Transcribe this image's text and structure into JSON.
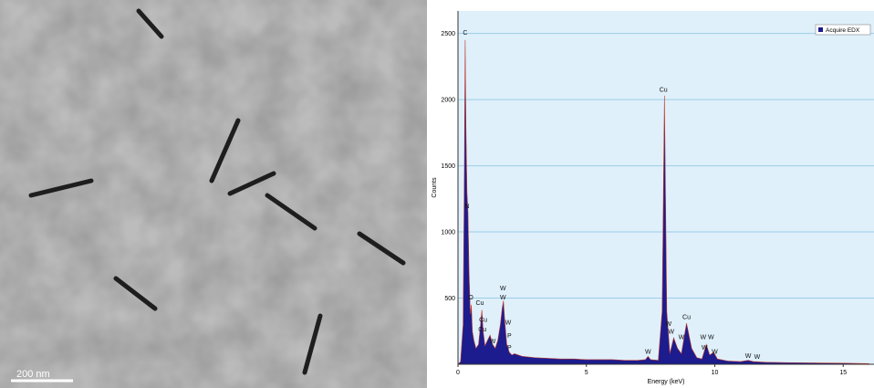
{
  "image": {
    "scale_label": "200 nm"
  },
  "chart_data": {
    "type": "area",
    "xlabel": "Energy (keV)",
    "ylabel": "Counts",
    "x": [
      0,
      0.1,
      0.2,
      0.25,
      0.28,
      0.31,
      0.35,
      0.39,
      0.43,
      0.48,
      0.52,
      0.56,
      0.62,
      0.7,
      0.8,
      0.88,
      0.93,
      0.98,
      1.05,
      1.15,
      1.25,
      1.35,
      1.45,
      1.55,
      1.65,
      1.72,
      1.77,
      1.82,
      1.9,
      2.0,
      2.1,
      2.2,
      2.5,
      3,
      3.5,
      4,
      4.5,
      5,
      5.5,
      6,
      6.5,
      7,
      7.3,
      7.4,
      7.5,
      7.8,
      7.95,
      8.04,
      8.13,
      8.25,
      8.4,
      8.55,
      8.7,
      8.9,
      9.1,
      9.3,
      9.5,
      9.67,
      9.8,
      9.96,
      10.1,
      10.5,
      11,
      11.3,
      11.5,
      12,
      13,
      14,
      15,
      16
    ],
    "series": [
      {
        "name": "Acquire EDX",
        "color": "#1c1c8e",
        "values": [
          0,
          20,
          300,
          1500,
          2450,
          1800,
          1300,
          1150,
          700,
          380,
          450,
          250,
          180,
          120,
          150,
          300,
          410,
          250,
          140,
          180,
          220,
          150,
          120,
          180,
          300,
          420,
          480,
          330,
          150,
          90,
          70,
          80,
          60,
          50,
          45,
          40,
          40,
          35,
          35,
          35,
          30,
          30,
          35,
          60,
          35,
          30,
          400,
          2030,
          400,
          80,
          200,
          120,
          80,
          310,
          120,
          50,
          40,
          150,
          70,
          90,
          40,
          25,
          20,
          30,
          20,
          15,
          12,
          10,
          8,
          5
        ]
      }
    ],
    "annotations": [
      {
        "text": "C",
        "x": 0.28,
        "y": 2490
      },
      {
        "text": "N",
        "x": 0.35,
        "y": 1180
      },
      {
        "text": "O",
        "x": 0.5,
        "y": 490
      },
      {
        "text": "Cu",
        "x": 0.85,
        "y": 450
      },
      {
        "text": "Cu",
        "x": 0.98,
        "y": 320
      },
      {
        "text": "Cu",
        "x": 0.95,
        "y": 250
      },
      {
        "text": "W",
        "x": 1.35,
        "y": 160
      },
      {
        "text": "W",
        "x": 1.75,
        "y": 560
      },
      {
        "text": "W",
        "x": 1.75,
        "y": 490
      },
      {
        "text": "W",
        "x": 1.95,
        "y": 300
      },
      {
        "text": "P",
        "x": 2.0,
        "y": 200
      },
      {
        "text": "P",
        "x": 2.0,
        "y": 110
      },
      {
        "text": "Cu",
        "x": 8.0,
        "y": 2060
      },
      {
        "text": "W",
        "x": 8.2,
        "y": 290
      },
      {
        "text": "W",
        "x": 8.3,
        "y": 230
      },
      {
        "text": "W",
        "x": 8.7,
        "y": 190
      },
      {
        "text": "Cu",
        "x": 8.9,
        "y": 340
      },
      {
        "text": "W",
        "x": 9.55,
        "y": 190
      },
      {
        "text": "W",
        "x": 9.85,
        "y": 190
      },
      {
        "text": "W",
        "x": 9.6,
        "y": 110
      },
      {
        "text": "W",
        "x": 10.0,
        "y": 80
      },
      {
        "text": "W",
        "x": 7.4,
        "y": 80
      },
      {
        "text": "W",
        "x": 11.3,
        "y": 50
      },
      {
        "text": "W",
        "x": 11.65,
        "y": 40
      }
    ],
    "xlim": [
      0,
      16.2
    ],
    "ylim": [
      0,
      2670
    ],
    "xticks": [
      0,
      5,
      10,
      15
    ],
    "yticks": [
      500,
      1000,
      1500,
      2000,
      2500
    ],
    "grid": true,
    "legend": "upper right"
  }
}
